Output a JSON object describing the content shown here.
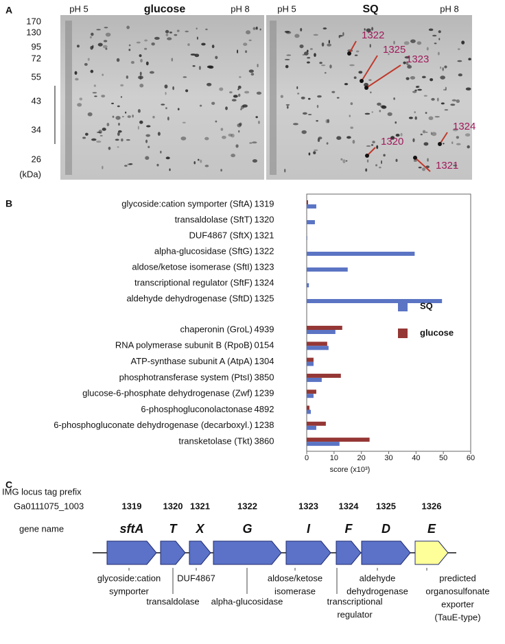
{
  "panel_a": {
    "letter": "A",
    "gels": [
      {
        "left_ph": "pH 5",
        "title": "glucose",
        "right_ph": "pH 8"
      },
      {
        "left_ph": "pH 5",
        "title": "SQ",
        "right_ph": "pH 8"
      }
    ],
    "mw_labels": [
      "170",
      "130",
      "95",
      "72",
      "55",
      "43",
      "34",
      "26",
      "(kDa)"
    ],
    "spot_labels": [
      "1322",
      "1325",
      "1323",
      "1324",
      "1320",
      "1321"
    ]
  },
  "chart_data": {
    "type": "bar",
    "orientation": "horizontal",
    "letter": "B",
    "categories": [
      "glycoside:cation symporter (SftA)",
      "transaldolase (SftT)",
      "DUF4867 (SftX)",
      "alpha-glucosidase (SftG)",
      "aldose/ketose isomerase (SftI)",
      "transcriptional regulator (SftF)",
      "aldehyde dehydrogenase (SftD)",
      "chaperonin (GroL)",
      "RNA polymerase subunit B (RpoB)",
      "ATP-synthase subunit A (AtpA)",
      "phosphotransferase system (PtsI)",
      "glucose-6-phosphate dehydrogenase (Zwf)",
      "6-phosphogluconolactonase",
      "6-phosphogluconate dehydrogenase (decarboxyl.)",
      "transketolase (Tkt)"
    ],
    "ids": [
      "1319",
      "1320",
      "1321",
      "1322",
      "1323",
      "1324",
      "1325",
      "4939",
      "0154",
      "1304",
      "3850",
      "1239",
      "4892",
      "1238",
      "3860"
    ],
    "series": [
      {
        "name": "glucose",
        "color": "#953735",
        "values": [
          0.5,
          0,
          0,
          0,
          0,
          0,
          0,
          13,
          7.5,
          2.5,
          12.5,
          3.5,
          1,
          7,
          23
        ]
      },
      {
        "name": "SQ",
        "color": "#5b74c4",
        "values": [
          3.5,
          3,
          0.2,
          39.5,
          15,
          0.8,
          49.5,
          10.5,
          8,
          2.5,
          5.5,
          2.5,
          1.5,
          3.5,
          12
        ]
      }
    ],
    "xlim": [
      0,
      60
    ],
    "xticks": [
      0,
      10,
      20,
      30,
      40,
      50,
      60
    ],
    "x_label": "score (x10³)",
    "legend": "right"
  },
  "panel_c": {
    "letter": "C",
    "prefix_label": "IMG locus tag prefix",
    "prefix": "Ga0111075_1003",
    "gene_name_label": "gene name",
    "genes": [
      {
        "tag": "1319",
        "name": "sftA",
        "description": [
          "glycoside:cation",
          "symporter"
        ]
      },
      {
        "tag": "1320",
        "name": "T",
        "description": [
          "transaldolase"
        ]
      },
      {
        "tag": "1321",
        "name": "X",
        "description": [
          "DUF4867"
        ]
      },
      {
        "tag": "1322",
        "name": "G",
        "description": [
          "alpha-glucosidase"
        ]
      },
      {
        "tag": "1323",
        "name": "I",
        "description": [
          "aldose/ketose",
          "isomerase"
        ]
      },
      {
        "tag": "1324",
        "name": "F",
        "description": [
          "transcriptional",
          "regulator"
        ]
      },
      {
        "tag": "1325",
        "name": "D",
        "description": [
          "aldehyde",
          "dehydrogenase"
        ]
      },
      {
        "tag": "1326",
        "name": "E",
        "description": [
          "predicted",
          "organosulfonate",
          "exporter",
          "(TauE-type)"
        ]
      }
    ]
  }
}
